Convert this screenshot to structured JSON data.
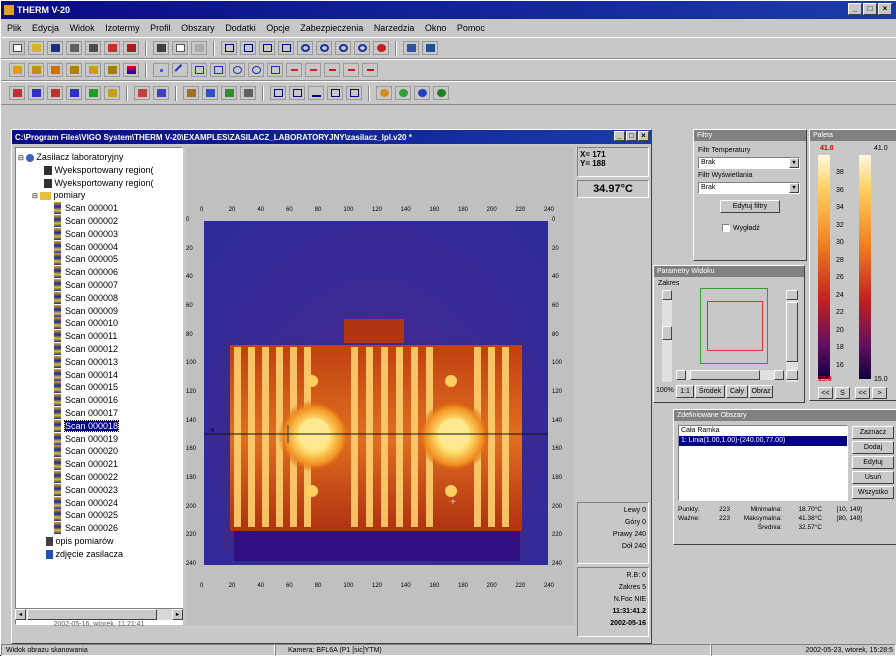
{
  "app": {
    "title": "THERM V-20"
  },
  "menu": [
    "Plik",
    "Edycja",
    "Widok",
    "Izotermy",
    "Profil",
    "Obszary",
    "Dodatki",
    "Opcje",
    "Zabezpieczenia",
    "Narzedzia",
    "Okno",
    "Pomoc"
  ],
  "document": {
    "title": "C:\\Program Files\\VIGO System\\THERM V-20\\EXAMPLES\\ZASILACZ_LABORATORYJNY\\zasilacz_lpl.v20 *",
    "cursor": {
      "x_label": "X= 171",
      "y_label": "Y= 188"
    },
    "temperature": "34.97°C",
    "selection": {
      "left": "Lewy 0",
      "top": "Góry 0",
      "right": "Prawy 240",
      "bottom": "Dół 240"
    },
    "info": {
      "rec": "R.B: 0",
      "set": "Zakres 5",
      "nfoc": "N.Foc NIE",
      "time": "11:31:41.2",
      "date": "2002-05-16"
    },
    "image_axis_ticks": [
      "0",
      "20",
      "40",
      "60",
      "80",
      "100",
      "120",
      "140",
      "160",
      "180",
      "200",
      "220",
      "240"
    ]
  },
  "tree": {
    "root": "Zasilacz laboratoryjny",
    "regions": [
      "Wyeksportowany region(",
      "Wyeksportowany region("
    ],
    "folder": "pomiary",
    "scans": [
      "Scan 000001",
      "Scan 000002",
      "Scan 000003",
      "Scan 000004",
      "Scan 000005",
      "Scan 000006",
      "Scan 000007",
      "Scan 000008",
      "Scan 000009",
      "Scan 000010",
      "Scan 000011",
      "Scan 000012",
      "Scan 000013",
      "Scan 000014",
      "Scan 000015",
      "Scan 000016",
      "Scan 000017",
      "Scan 000018",
      "Scan 000019",
      "Scan 000020",
      "Scan 000021",
      "Scan 000022",
      "Scan 000023",
      "Scan 000024",
      "Scan 000025",
      "Scan 000026"
    ],
    "selected_index": 17,
    "extra": [
      "opis pomiarów",
      "zdjęcie zasilacza"
    ],
    "footer": "2002-05-16, wtorek, 11:21:41"
  },
  "filters": {
    "title": "Filtry",
    "temp_label": "Filtr Temperatury",
    "temp_value": "Brak",
    "display_label": "Filtr Wyświetlania",
    "display_value": "Brak",
    "edit_button": "Edytuj filtry",
    "smooth_label": "Wygładź"
  },
  "palette": {
    "title": "Paleta",
    "max_label": "41.0",
    "max_label_right": "41.0",
    "min_label": "15.0",
    "min_right": "15.0",
    "scale": [
      "38",
      "36",
      "34",
      "32",
      "30",
      "28",
      "26",
      "24",
      "22",
      "20",
      "18",
      "16"
    ],
    "buttons": [
      "<<",
      "S",
      "<<",
      ">"
    ]
  },
  "zoom": {
    "title": "Parametry Widoku",
    "label": "Zakres",
    "pct": "100%",
    "buttons": [
      "1:1",
      "Środek",
      "Cały",
      "Obraz"
    ]
  },
  "objects": {
    "title": "Zdefiniowane Obszary",
    "items": [
      "Cała Ramka",
      "1: Linia(1.00,1.00)-(240.00,77.00)"
    ],
    "buttons": [
      "Zaznacz",
      "Dodaj",
      "Edytuj",
      "Usuń",
      "Wszystko"
    ],
    "stats": [
      {
        "l1": "Punkty:",
        "n": "223",
        "l2": "Minimalna:",
        "v": "18.70°C",
        "r": "[10, 149]"
      },
      {
        "l1": "Ważne:",
        "n": "223",
        "l2": "Maksymalna:",
        "v": "41.38°C",
        "r": "[80, 149]"
      },
      {
        "l1": "",
        "n": "",
        "l2": "Średnia:",
        "v": "32.57°C",
        "r": ""
      }
    ]
  },
  "status": {
    "left": "Widok obrazu skanowania",
    "middle": "Kamera: BFL6A (P1 [sic]YTM)",
    "right": "2002-05-23, wtorek, 15:28:5"
  },
  "colors": {
    "title_active": "#0a0a86",
    "window_bg": "#c8c8c8",
    "selection": "#000080"
  }
}
